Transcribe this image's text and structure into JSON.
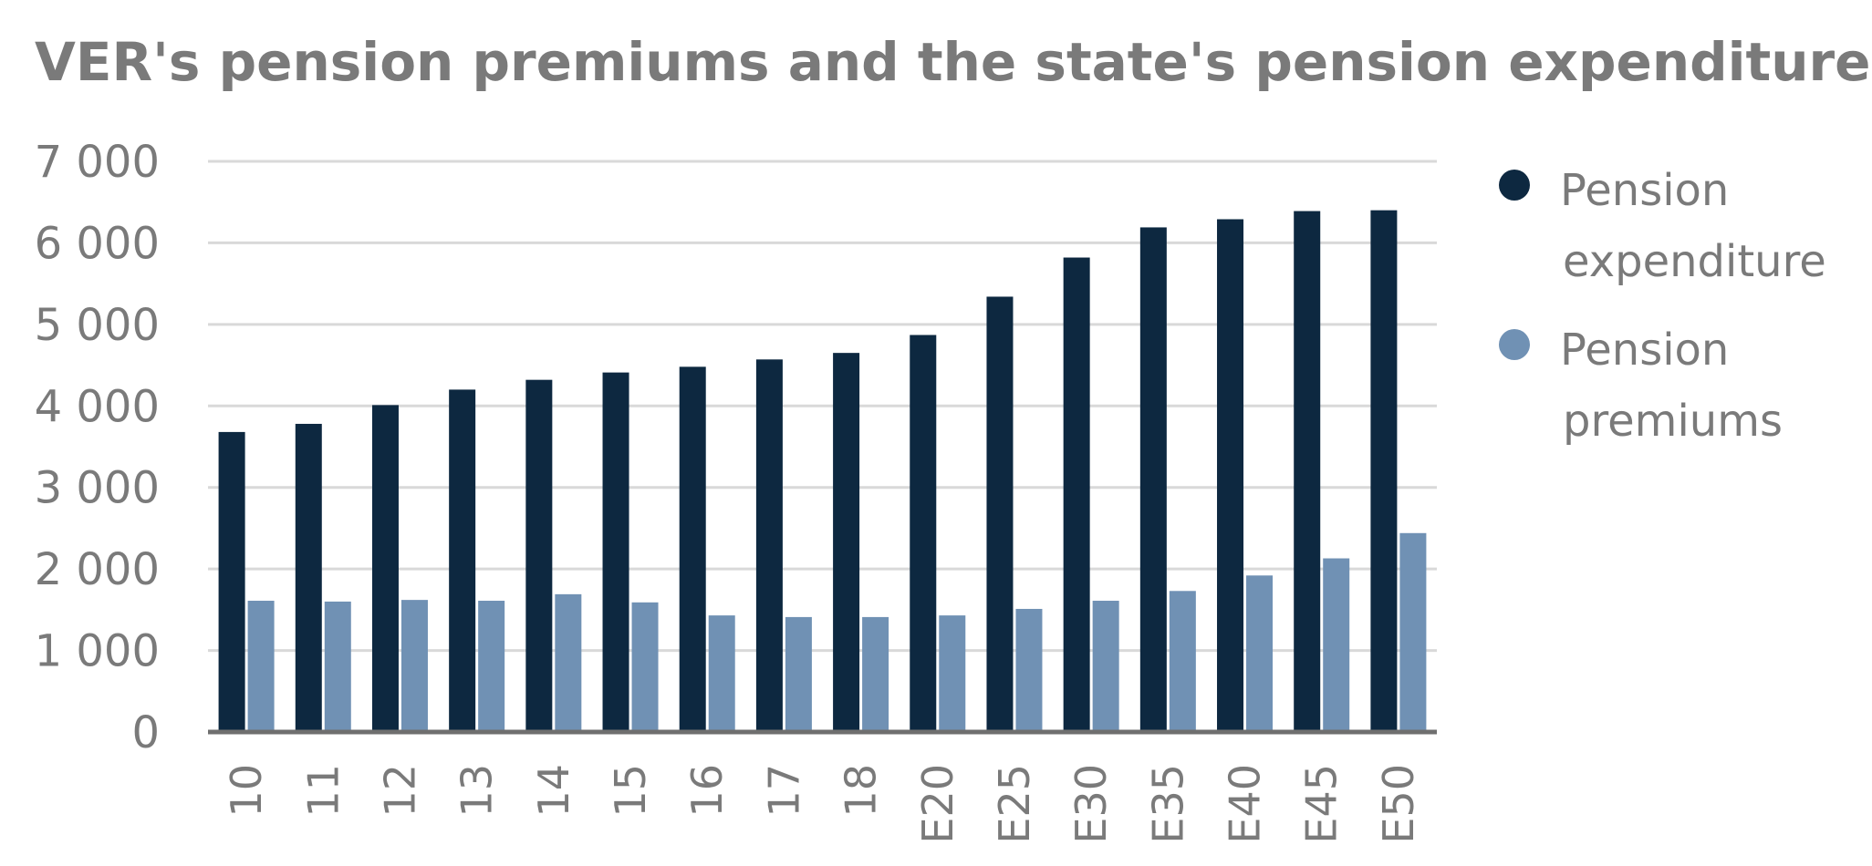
{
  "chart_data": {
    "type": "bar",
    "title": "VER's pension premiums and the state's pension expenditure (MEUR)",
    "xlabel": "",
    "ylabel": "",
    "categories": [
      "10",
      "11",
      "12",
      "13",
      "14",
      "15",
      "16",
      "17",
      "18",
      "E20",
      "E25",
      "E30",
      "E35",
      "E40",
      "E45",
      "E50"
    ],
    "series": [
      {
        "name": "Pension expenditure",
        "legend_lines": [
          "Pension",
          "expenditure"
        ],
        "color": "#0d2840",
        "values": [
          3680,
          3780,
          4010,
          4200,
          4320,
          4410,
          4480,
          4570,
          4650,
          4870,
          5340,
          5820,
          6190,
          6290,
          6390,
          6400
        ]
      },
      {
        "name": "Pension premiums",
        "legend_lines": [
          "Pension",
          "premiums"
        ],
        "color": "#7091b4",
        "values": [
          1610,
          1600,
          1620,
          1610,
          1690,
          1590,
          1430,
          1410,
          1410,
          1430,
          1510,
          1610,
          1730,
          1920,
          2130,
          2440
        ]
      }
    ],
    "ylim": [
      0,
      7000
    ],
    "yticks": [
      0,
      1000,
      2000,
      3000,
      4000,
      5000,
      6000,
      7000
    ],
    "ytick_labels": [
      "0",
      "1 000",
      "2 000",
      "3 000",
      "4 000",
      "5 000",
      "6 000",
      "7 000"
    ],
    "grid": true,
    "legend_position": "right"
  }
}
